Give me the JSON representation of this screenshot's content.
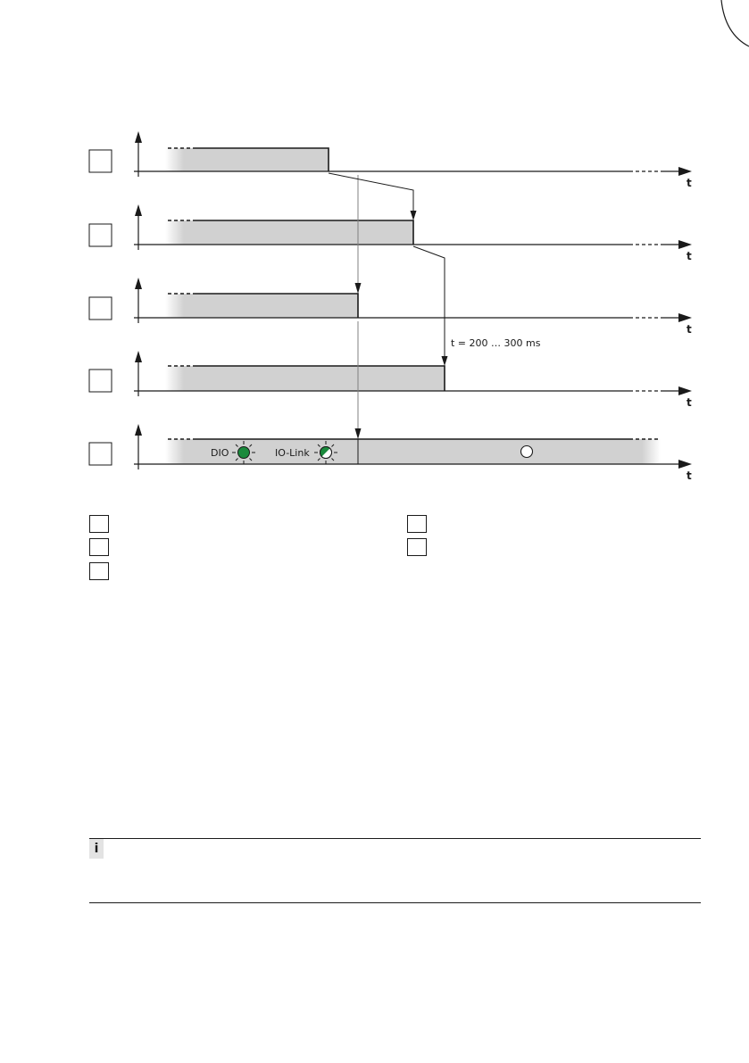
{
  "diagram": {
    "time_axis_label": "t",
    "delay_annotation": "t = 200 … 300 ms",
    "dio_label": "DIO",
    "iolink_label": "IO-Link",
    "rows": [
      {
        "index_label": ""
      },
      {
        "index_label": ""
      },
      {
        "index_label": ""
      },
      {
        "index_label": ""
      },
      {
        "index_label": ""
      }
    ]
  },
  "legend": [
    {
      "key": "",
      "text": ""
    },
    {
      "key": "",
      "text": ""
    },
    {
      "key": "",
      "text": ""
    },
    {
      "key": "",
      "text": ""
    },
    {
      "key": "",
      "text": ""
    }
  ],
  "note": {
    "icon": "info-icon",
    "text": ""
  },
  "colors": {
    "signal_fill": "#d1d1d1",
    "led_green": "#1a8a3c",
    "line": "#1a1a1a",
    "guide_line": "#808080"
  }
}
